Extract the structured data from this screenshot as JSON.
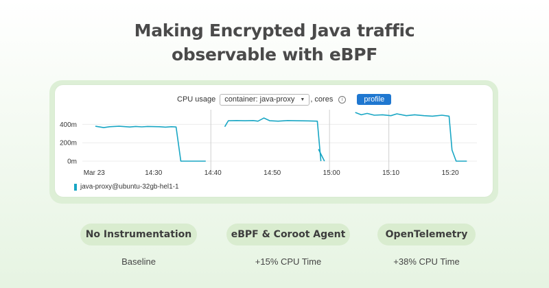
{
  "headline": {
    "line1": "Making Encrypted Java traffic",
    "line2": "observable with eBPF"
  },
  "controls": {
    "label": "CPU usage",
    "container_select": "container: java-proxy",
    "suffix": ", cores",
    "info_icon": "info-icon",
    "profile_button": "profile"
  },
  "legend": {
    "label": "java-proxy@ubuntu-32gb-hel1-1",
    "color": "#18a6c4"
  },
  "chart_data": {
    "type": "line",
    "yticks": [
      "400m",
      "200m",
      "0m"
    ],
    "ytick_values": [
      400,
      200,
      0
    ],
    "ylim": [
      0,
      560
    ],
    "xticks": [
      {
        "label": "Mar 23",
        "t": 0
      },
      {
        "label": "14:30",
        "t": 10
      },
      {
        "label": "14:40",
        "t": 20
      },
      {
        "label": "14:50",
        "t": 30
      },
      {
        "label": "15:00",
        "t": 40
      },
      {
        "label": "15:10",
        "t": 50
      },
      {
        "label": "15:20",
        "t": 60
      }
    ],
    "x_start": -2,
    "x_end": 64.5,
    "series": [
      {
        "name": "java-proxy@ubuntu-32gb-hel1-1",
        "segments": [
          [
            [
              0.2,
              380
            ],
            [
              1.6,
              365
            ],
            [
              2.6,
              375
            ],
            [
              4.2,
              380
            ],
            [
              6,
              372
            ],
            [
              7,
              378
            ],
            [
              8,
              373
            ],
            [
              9,
              378
            ],
            [
              11,
              375
            ],
            [
              12,
              370
            ],
            [
              13,
              375
            ],
            [
              13.8,
              372
            ],
            [
              14.6,
              0
            ],
            [
              18.8,
              0
            ]
          ],
          [
            [
              22,
              375
            ],
            [
              22.6,
              440
            ],
            [
              24,
              442
            ],
            [
              25.4,
              440
            ],
            [
              26.8,
              442
            ],
            [
              27.6,
              435
            ],
            [
              28.6,
              470
            ],
            [
              29.6,
              440
            ],
            [
              31,
              435
            ],
            [
              32.6,
              442
            ],
            [
              34,
              440
            ],
            [
              36,
              438
            ],
            [
              37.6,
              435
            ],
            [
              38.2,
              0
            ]
          ],
          [
            [
              37.8,
              130
            ],
            [
              38.8,
              0
            ]
          ],
          [
            [
              44,
              530
            ],
            [
              45,
              505
            ],
            [
              46,
              520
            ],
            [
              47.2,
              500
            ],
            [
              48.6,
              505
            ],
            [
              50,
              495
            ],
            [
              51,
              515
            ],
            [
              52.6,
              495
            ],
            [
              54,
              505
            ],
            [
              55.6,
              495
            ],
            [
              57,
              490
            ],
            [
              58.6,
              500
            ],
            [
              59.8,
              490
            ],
            [
              60.3,
              120
            ],
            [
              61,
              0
            ],
            [
              62.8,
              0
            ]
          ]
        ]
      }
    ],
    "separators_t": [
      20,
      40,
      50
    ]
  },
  "approaches": [
    {
      "title": "No Instrumentation",
      "result": "Baseline"
    },
    {
      "title": "eBPF & Coroot Agent",
      "result": "+15% CPU Time"
    },
    {
      "title": "OpenTelemetry",
      "result": "+38% CPU Time"
    }
  ]
}
